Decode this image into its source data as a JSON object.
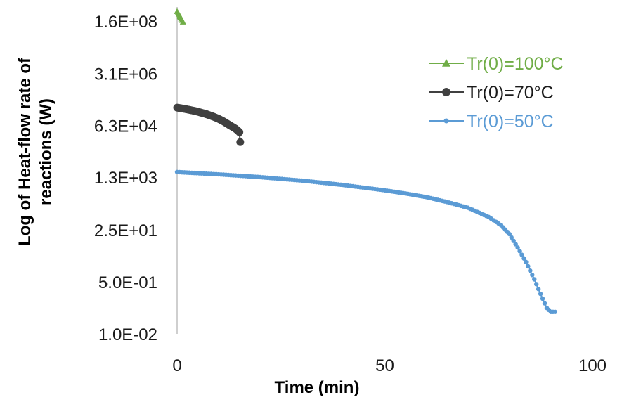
{
  "chart_data": {
    "type": "scatter",
    "title": "",
    "xlabel": "Time (min)",
    "ylabel": "Log of Heat-flow rate of reactions (W)",
    "y_scale": "log",
    "xlim": [
      0,
      100
    ],
    "ylim": [
      0.01,
      160000000
    ],
    "x_ticks": [
      0,
      50,
      100
    ],
    "x_tick_labels": [
      "0",
      "50",
      "100"
    ],
    "y_ticks": [
      0.01,
      0.5,
      25,
      1300,
      63000,
      3100000,
      160000000
    ],
    "y_tick_labels": [
      "1.0E-02",
      "5.0E-01",
      "2.5E+01",
      "1.3E+03",
      "6.3E+04",
      "3.1E+06",
      "1.6E+08"
    ],
    "grid": false,
    "legend_position": "top-right",
    "series": [
      {
        "name": "Tr(0)=100°C",
        "color": "#70ad47",
        "marker": "triangle",
        "x": [
          0,
          0.2,
          0.4,
          0.6,
          0.8,
          1.0,
          1.2,
          1.4
        ],
        "y": [
          330000000,
          300000000,
          270000000,
          240000000,
          215000000,
          190000000,
          170000000,
          150000000
        ]
      },
      {
        "name": "Tr(0)=70°C",
        "color": "#404040",
        "marker": "circle",
        "x": [
          0,
          1,
          2,
          3,
          4,
          5,
          6,
          7,
          8,
          9,
          10,
          11,
          12,
          13,
          14,
          14.5,
          15,
          15.2
        ],
        "y": [
          240000,
          228000,
          216000,
          203000,
          190000,
          176000,
          162000,
          148000,
          133000,
          118000,
          103000,
          88000,
          73000,
          60000,
          50000,
          44000,
          38000,
          18000
        ]
      },
      {
        "name": "Tr(0)=50°C",
        "color": "#5b9bd5",
        "marker": "circle",
        "x": [
          0,
          10,
          20,
          30,
          40,
          50,
          55,
          60,
          65,
          70,
          75,
          78,
          80,
          82,
          84,
          86,
          88,
          89,
          90,
          91
        ],
        "y": [
          1900,
          1600,
          1300,
          1000,
          720,
          480,
          380,
          290,
          200,
          130,
          65,
          35,
          18,
          6.5,
          2.2,
          0.6,
          0.14,
          0.07,
          0.052,
          0.052
        ]
      }
    ]
  }
}
